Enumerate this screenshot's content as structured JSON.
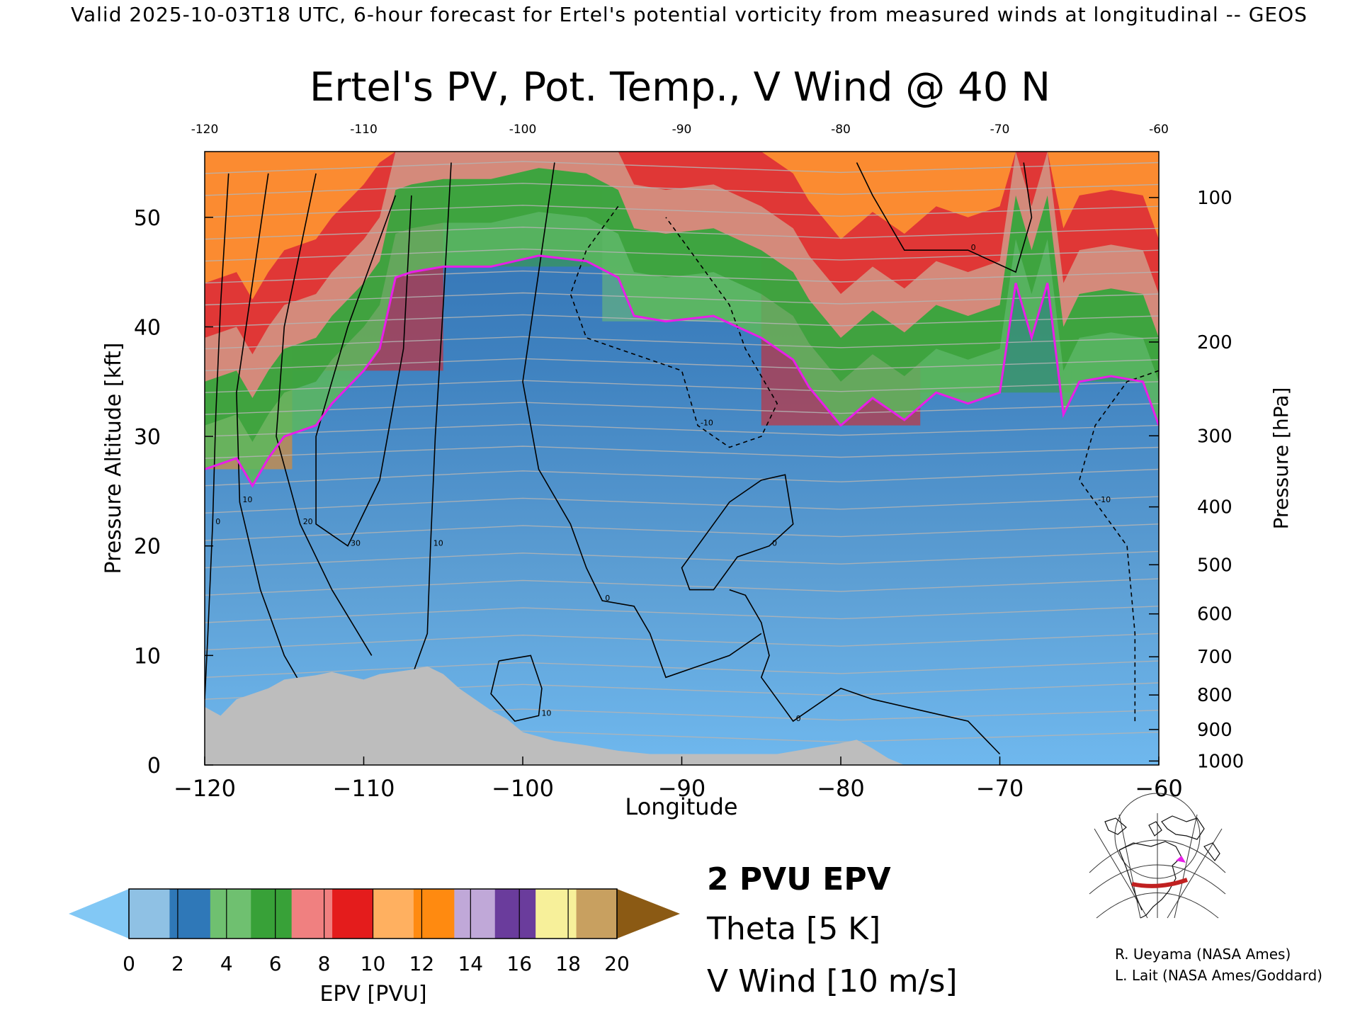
{
  "header": {
    "text": "Valid 2025-10-03T18 UTC, 6-hour forecast for Ertel's potential vorticity from measured winds at longitudinal -- GEOS"
  },
  "chart_data": {
    "type": "heatmap",
    "title": "Ertel's PV, Pot. Temp., V Wind @ 40 N",
    "xlabel": "Longitude",
    "ylabel": "Pressure Altitude [kft]",
    "y2label": "Pressure [hPa]",
    "xlim": [
      -120,
      -60
    ],
    "ylim": [
      0,
      56
    ],
    "x_ticks": [
      -120,
      -110,
      -100,
      -90,
      -80,
      -70,
      -60
    ],
    "x_tick_labels": [
      "−120",
      "−110",
      "−100",
      "−90",
      "−80",
      "−70",
      "−60"
    ],
    "top_tick_labels": [
      "-120",
      "-110",
      "-100",
      "-90",
      "-80",
      "-70",
      "-60"
    ],
    "y_ticks": [
      0,
      10,
      20,
      30,
      40,
      50
    ],
    "y_tick_labels": [
      "0",
      "10",
      "20",
      "30",
      "40",
      "50"
    ],
    "pressure_ticks": [
      {
        "hpa": 100,
        "label": "100"
      },
      {
        "hpa": 200,
        "label": "200"
      },
      {
        "hpa": 300,
        "label": "300"
      },
      {
        "hpa": 400,
        "label": "400"
      },
      {
        "hpa": 500,
        "label": "500"
      },
      {
        "hpa": 600,
        "label": "600"
      },
      {
        "hpa": 700,
        "label": "700"
      },
      {
        "hpa": 800,
        "label": "800"
      },
      {
        "hpa": 900,
        "label": "900"
      },
      {
        "hpa": 1000,
        "label": "1000"
      }
    ],
    "colorbar": {
      "label": "EPV [PVU]",
      "tick_labels": [
        "0",
        "2",
        "4",
        "6",
        "8",
        "10",
        "12",
        "14",
        "16",
        "18",
        "20"
      ],
      "range": [
        0,
        20
      ],
      "under_color": "#82c8f5",
      "over_color": "#8b5a14",
      "colors": [
        "#8fc1e4",
        "#2f78b8",
        "#6fc070",
        "#38a138",
        "#f08080",
        "#e41c1c",
        "#ffb060",
        "#ff8a10",
        "#c0a8d8",
        "#6a3c9c",
        "#f7f09a",
        "#c8a060"
      ]
    },
    "pv_threshold_pvu": 2,
    "pv_surface_kft": [
      [
        -120,
        27
      ],
      [
        -118,
        28
      ],
      [
        -117,
        25.5
      ],
      [
        -116,
        28
      ],
      [
        -115,
        30
      ],
      [
        -113,
        31
      ],
      [
        -112,
        33
      ],
      [
        -110,
        36
      ],
      [
        -109,
        38
      ],
      [
        -108,
        44.5
      ],
      [
        -107,
        45
      ],
      [
        -105,
        45.5
      ],
      [
        -102,
        45.5
      ],
      [
        -99,
        46.5
      ],
      [
        -96,
        46
      ],
      [
        -94,
        44.5
      ],
      [
        -93,
        41
      ],
      [
        -91,
        40.5
      ],
      [
        -88,
        41
      ],
      [
        -85,
        39
      ],
      [
        -83,
        37
      ],
      [
        -82,
        34.5
      ],
      [
        -80,
        31
      ],
      [
        -78,
        33.5
      ],
      [
        -76,
        31.5
      ],
      [
        -74,
        34
      ],
      [
        -72,
        33
      ],
      [
        -70,
        34
      ],
      [
        -69,
        44
      ],
      [
        -68,
        39
      ],
      [
        -67,
        44
      ],
      [
        -66,
        32
      ],
      [
        -65,
        35
      ],
      [
        -63,
        35.5
      ],
      [
        -61,
        35
      ],
      [
        -60,
        31
      ]
    ],
    "terrain_kft": [
      [
        -120,
        5.3
      ],
      [
        -119,
        4.5
      ],
      [
        -118,
        6
      ],
      [
        -117,
        6.5
      ],
      [
        -116,
        7
      ],
      [
        -115,
        7.8
      ],
      [
        -114,
        8
      ],
      [
        -113,
        8.2
      ],
      [
        -112,
        8.5
      ],
      [
        -110,
        7.8
      ],
      [
        -109,
        8.3
      ],
      [
        -107,
        8.7
      ],
      [
        -106,
        9
      ],
      [
        -105,
        8.3
      ],
      [
        -104,
        7
      ],
      [
        -102,
        5
      ],
      [
        -101,
        4.2
      ],
      [
        -100,
        3
      ],
      [
        -98,
        2.2
      ],
      [
        -96,
        1.8
      ],
      [
        -94,
        1.3
      ],
      [
        -92,
        1
      ],
      [
        -88,
        1
      ],
      [
        -84,
        1
      ],
      [
        -80,
        2
      ],
      [
        -79,
        2.3
      ],
      [
        -78,
        1.5
      ],
      [
        -77,
        0.6
      ],
      [
        -76,
        0
      ]
    ],
    "sample_columns": [
      {
        "lon": -119,
        "stratosphere_pvu": 12,
        "tropopause_kft": 27
      },
      {
        "lon": -110,
        "stratosphere_pvu": 9,
        "tropopause_kft": 36
      },
      {
        "lon": -100,
        "stratosphere_pvu": 6,
        "tropopause_kft": 45.5
      },
      {
        "lon": -90,
        "stratosphere_pvu": 4,
        "tropopause_kft": 40.5
      },
      {
        "lon": -80,
        "stratosphere_pvu": 9,
        "tropopause_kft": 31
      },
      {
        "lon": -70,
        "stratosphere_pvu": 5,
        "tropopause_kft": 34
      },
      {
        "lon": -61,
        "stratosphere_pvu": 6,
        "tropopause_kft": 35
      }
    ],
    "v_wind_contours": [
      {
        "label": "0",
        "points": [
          [
            -118.5,
            54
          ],
          [
            -119,
            42
          ],
          [
            -119.3,
            32
          ],
          [
            -119.5,
            22
          ],
          [
            -119.8,
            12
          ],
          [
            -120,
            6
          ]
        ]
      },
      {
        "label": "10",
        "points": [
          [
            -116,
            54
          ],
          [
            -117,
            44
          ],
          [
            -118,
            34
          ],
          [
            -117.8,
            24
          ],
          [
            -116.5,
            16
          ],
          [
            -115,
            10
          ],
          [
            -114,
            7.5
          ]
        ]
      },
      {
        "label": "20",
        "points": [
          [
            -113,
            54
          ],
          [
            -115,
            40
          ],
          [
            -115.5,
            30
          ],
          [
            -114,
            22
          ],
          [
            -112,
            16
          ],
          [
            -109.5,
            10
          ]
        ]
      },
      {
        "label": "30",
        "points": [
          [
            -108,
            52
          ],
          [
            -111,
            40
          ],
          [
            -113,
            30
          ],
          [
            -113,
            22
          ],
          [
            -111,
            20
          ],
          [
            -109,
            26
          ],
          [
            -107.5,
            38
          ],
          [
            -107,
            52
          ]
        ]
      },
      {
        "label": "10",
        "points": [
          [
            -104.5,
            55
          ],
          [
            -105,
            42
          ],
          [
            -105.5,
            30
          ],
          [
            -105.8,
            20
          ],
          [
            -106,
            12
          ],
          [
            -107,
            8
          ]
        ]
      },
      {
        "label": "0",
        "points": [
          [
            -98,
            55
          ],
          [
            -99,
            45
          ],
          [
            -100,
            35
          ],
          [
            -99,
            27
          ],
          [
            -97,
            22
          ],
          [
            -96,
            18
          ],
          [
            -95,
            15
          ],
          [
            -93,
            14.5
          ],
          [
            -92,
            12
          ],
          [
            -91,
            8
          ],
          [
            -89,
            9
          ],
          [
            -87,
            10
          ],
          [
            -85,
            12
          ]
        ]
      },
      {
        "label": "-10",
        "points": [
          [
            -94,
            51
          ],
          [
            -96,
            47
          ],
          [
            -97,
            43
          ],
          [
            -96,
            39
          ],
          [
            -94,
            38
          ],
          [
            -92,
            37
          ],
          [
            -90,
            36
          ],
          [
            -89,
            31
          ],
          [
            -87,
            29
          ],
          [
            -85,
            30
          ],
          [
            -84,
            33
          ],
          [
            -86,
            38
          ],
          [
            -87,
            42
          ],
          [
            -89,
            46
          ],
          [
            -91,
            50
          ]
        ]
      },
      {
        "label": "0",
        "points": [
          [
            -89,
            20
          ],
          [
            -87,
            24
          ],
          [
            -85,
            26
          ],
          [
            -83.5,
            26.5
          ],
          [
            -83,
            22
          ],
          [
            -84.5,
            20
          ],
          [
            -86.5,
            19
          ],
          [
            -88,
            16
          ],
          [
            -89.5,
            16
          ],
          [
            -90,
            18
          ],
          [
            -89,
            20
          ]
        ]
      },
      {
        "label": "0",
        "points": [
          [
            -87,
            16
          ],
          [
            -86,
            15.5
          ],
          [
            -85,
            13
          ],
          [
            -84.5,
            10
          ],
          [
            -85,
            8
          ],
          [
            -83,
            4
          ],
          [
            -80,
            7
          ],
          [
            -78,
            6
          ],
          [
            -75,
            5
          ],
          [
            -72,
            4
          ],
          [
            -70,
            1
          ]
        ]
      },
      {
        "label": "10",
        "points": [
          [
            -101.5,
            9.5
          ],
          [
            -99.5,
            10
          ],
          [
            -98.8,
            7
          ],
          [
            -99,
            4.5
          ],
          [
            -100.5,
            4
          ],
          [
            -102,
            6.5
          ],
          [
            -101.5,
            9.5
          ]
        ]
      },
      {
        "label": "0",
        "points": [
          [
            -79,
            55
          ],
          [
            -78,
            52
          ],
          [
            -76,
            47
          ],
          [
            -72,
            47
          ],
          [
            -69,
            45
          ],
          [
            -68,
            50
          ],
          [
            -68.5,
            55
          ]
        ]
      },
      {
        "label": "-10",
        "points": [
          [
            -60,
            36
          ],
          [
            -62,
            35
          ],
          [
            -64,
            31
          ],
          [
            -65,
            26
          ],
          [
            -64,
            24
          ],
          [
            -62,
            20
          ],
          [
            -61.5,
            12
          ],
          [
            -61.5,
            4
          ]
        ]
      }
    ],
    "theta_lines_kft": [
      [
        2,
        3
      ],
      [
        4,
        5
      ],
      [
        6,
        7.5
      ],
      [
        8,
        9.5
      ],
      [
        10.5,
        12
      ],
      [
        13,
        14.5
      ],
      [
        15.5,
        17
      ],
      [
        18,
        19.5
      ],
      [
        20.5,
        22
      ],
      [
        23,
        24.5
      ],
      [
        25.5,
        27
      ],
      [
        28,
        29
      ],
      [
        30,
        31
      ],
      [
        32,
        33
      ],
      [
        34,
        35
      ],
      [
        36,
        37
      ],
      [
        38,
        39
      ],
      [
        40,
        41
      ],
      [
        42,
        43
      ],
      [
        44,
        45
      ],
      [
        46,
        47
      ],
      [
        48,
        49
      ],
      [
        50,
        51
      ],
      [
        52,
        53
      ],
      [
        54,
        55
      ]
    ]
  },
  "legend": {
    "pv_label": "2 PVU EPV",
    "theta_label": "Theta [5 K]",
    "wind_label": "V Wind [10 m/s]",
    "pv_color": "#e81ee8",
    "theta_color": "#b4b4b4",
    "wind_color": "#000000"
  },
  "credits": {
    "line1": "R. Ueyama (NASA Ames)",
    "line2": "L. Lait (NASA Ames/Goddard)"
  },
  "inset_map": {
    "section_color": "#c02020",
    "marker_color": "#e81ee8"
  }
}
